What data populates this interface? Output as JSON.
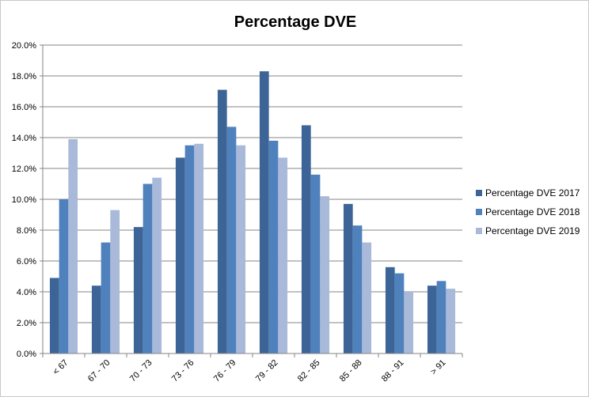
{
  "chart_data": {
    "type": "bar",
    "title": "Percentage DVE",
    "xlabel": "",
    "ylabel": "",
    "categories": [
      "< 67",
      "67 - 70",
      "70 - 73",
      "73 - 76",
      "76 - 79",
      "79 - 82",
      "82 - 85",
      "85 - 88",
      "88 - 91",
      "> 91"
    ],
    "series": [
      {
        "name": "Percentage DVE 2017",
        "color": "#3D6496",
        "values": [
          4.9,
          4.4,
          8.2,
          12.7,
          17.1,
          18.3,
          14.8,
          9.7,
          5.6,
          4.4
        ]
      },
      {
        "name": "Percentage DVE 2018",
        "color": "#4F81BD",
        "values": [
          10.0,
          7.2,
          11.0,
          13.5,
          14.7,
          13.8,
          11.6,
          8.3,
          5.2,
          4.7
        ]
      },
      {
        "name": "Percentage DVE 2019",
        "color": "#A9B9D9",
        "values": [
          13.9,
          9.3,
          11.4,
          13.6,
          13.5,
          12.7,
          10.2,
          7.2,
          4.0,
          4.2
        ]
      }
    ],
    "ylim": [
      0,
      20
    ],
    "ytick_step": 2,
    "ytick_labels": [
      "0.0%",
      "2.0%",
      "4.0%",
      "6.0%",
      "8.0%",
      "10.0%",
      "12.0%",
      "14.0%",
      "16.0%",
      "18.0%",
      "20.0%"
    ],
    "grid": true,
    "legend_position": "right",
    "gridline_color": "#868686",
    "axis_color": "#868686"
  }
}
